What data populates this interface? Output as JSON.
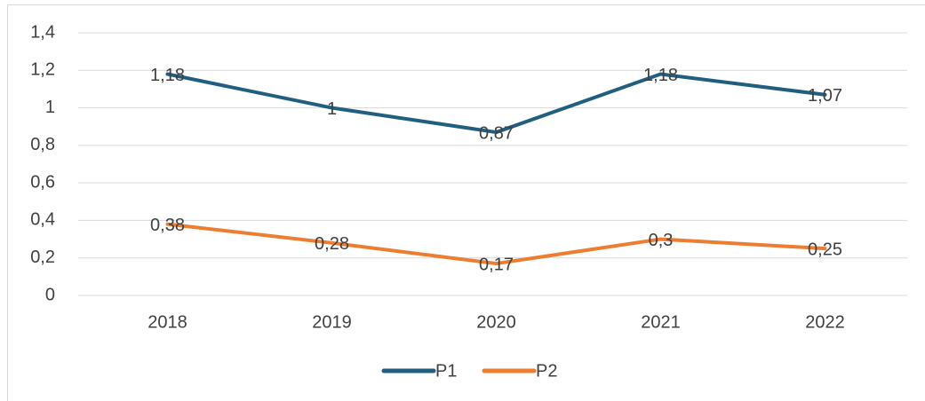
{
  "chart_data": {
    "type": "line",
    "categories": [
      "2018",
      "2019",
      "2020",
      "2021",
      "2022"
    ],
    "series": [
      {
        "name": "P1",
        "color": "#215f80",
        "values": [
          1.18,
          1,
          0.87,
          1.18,
          1.07
        ],
        "value_labels": [
          "1,18",
          "1",
          "0,87",
          "1,18",
          "1,07"
        ]
      },
      {
        "name": "P2",
        "color": "#ed7d31",
        "values": [
          0.38,
          0.28,
          0.17,
          0.3,
          0.25
        ],
        "value_labels": [
          "0,38",
          "0,28",
          "0,17",
          "0,3",
          "0,25"
        ]
      }
    ],
    "ylim": [
      0,
      1.4
    ],
    "yticks": [
      0,
      {
        "value": 0.2,
        "label": "0,2"
      },
      {
        "value": 0.4,
        "label": "0,4"
      },
      {
        "value": 0.6,
        "label": "0,6"
      },
      {
        "value": 0.8,
        "label": "0,8"
      },
      1,
      {
        "value": 1.2,
        "label": "1,2"
      },
      {
        "value": 1.4,
        "label": "1,4"
      }
    ],
    "grid": true,
    "legend": "bottom"
  }
}
